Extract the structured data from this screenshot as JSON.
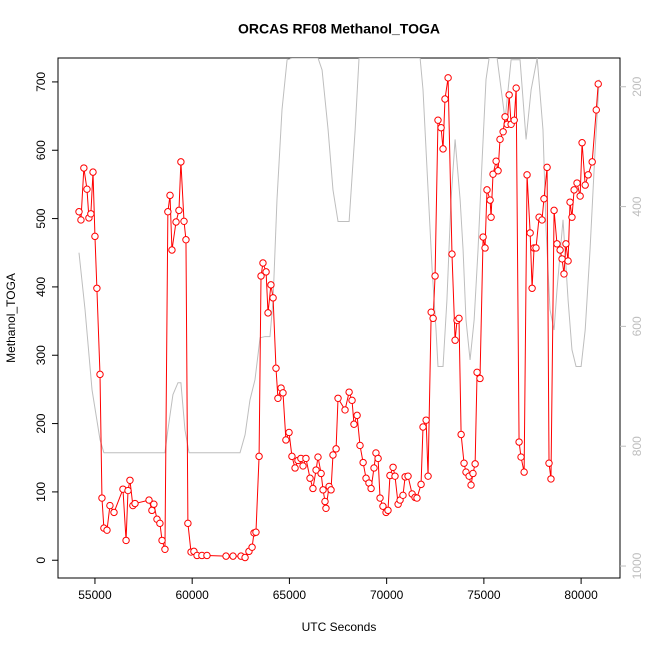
{
  "chart_data": {
    "type": "scatter",
    "title": "ORCAS RF08 Methanol_TOGA",
    "x_label": "UTC Seconds",
    "y_label": "Methanol_TOGA",
    "xlim": [
      53100,
      82000
    ],
    "ylim": [
      -26,
      735
    ],
    "y2lim": [
      1020,
      152
    ],
    "xticks": [
      55000,
      60000,
      65000,
      70000,
      75000,
      80000
    ],
    "yticks": [
      0,
      100,
      200,
      300,
      400,
      500,
      600,
      700
    ],
    "y2ticks": [
      200,
      400,
      600,
      800,
      1000
    ],
    "series": [
      {
        "color": "#ff0000",
        "mode": "line-points",
        "x": [
          54180,
          54280,
          54430,
          54590,
          54690,
          54790,
          54900,
          55000,
          55100,
          55260,
          55360,
          55460,
          55620,
          55770,
          55980,
          56440,
          56600,
          56700,
          56800,
          56950,
          57060,
          57780,
          57930,
          58030,
          58190,
          58340,
          58450,
          58600,
          58750,
          58860,
          58960,
          59170,
          59320,
          59420,
          59580,
          59680,
          59780,
          59940,
          60090,
          60250,
          60500,
          60760,
          61740,
          62100,
          62510,
          62720,
          62920,
          63080,
          63180,
          63280,
          63440,
          63540,
          63640,
          63800,
          63900,
          64050,
          64160,
          64310,
          64410,
          64570,
          64670,
          64820,
          64980,
          65130,
          65290,
          65440,
          65590,
          65700,
          65850,
          66060,
          66210,
          66370,
          66470,
          66630,
          66730,
          66830,
          66880,
          67040,
          67140,
          67240,
          67400,
          67500,
          67860,
          68070,
          68220,
          68320,
          68480,
          68630,
          68790,
          68940,
          69090,
          69200,
          69350,
          69450,
          69560,
          69660,
          69810,
          69970,
          70070,
          70170,
          70330,
          70430,
          70590,
          70690,
          70840,
          70950,
          71100,
          71310,
          71460,
          71560,
          71770,
          71870,
          72030,
          72130,
          72290,
          72390,
          72490,
          72640,
          72800,
          72900,
          73000,
          73160,
          73360,
          73520,
          73620,
          73720,
          73830,
          73980,
          74080,
          74240,
          74340,
          74440,
          74550,
          74650,
          74800,
          74960,
          75060,
          75160,
          75320,
          75370,
          75470,
          75630,
          75730,
          75830,
          75990,
          76090,
          76200,
          76300,
          76400,
          76560,
          76660,
          76810,
          76910,
          77070,
          77220,
          77380,
          77480,
          77580,
          77680,
          77840,
          77990,
          78090,
          78250,
          78350,
          78450,
          78610,
          78760,
          78920,
          79020,
          79120,
          79220,
          79330,
          79430,
          79530,
          79640,
          79790,
          79950,
          80050,
          80210,
          80360,
          80570,
          80780,
          80880
        ],
        "values": [
          510,
          498,
          574,
          543,
          501,
          507,
          568,
          474,
          398,
          272,
          91,
          47,
          44,
          80,
          70,
          104,
          29,
          102,
          117,
          80,
          83,
          88,
          73,
          82,
          60,
          54,
          29,
          16,
          510,
          534,
          454,
          495,
          512,
          583,
          496,
          469,
          54,
          12,
          13,
          7,
          7,
          7,
          6,
          6,
          6,
          4,
          13,
          19,
          40,
          41,
          152,
          416,
          435,
          422,
          362,
          403,
          384,
          281,
          237,
          252,
          245,
          176,
          187,
          152,
          135,
          146,
          149,
          138,
          149,
          120,
          105,
          132,
          151,
          127,
          103,
          86,
          76,
          108,
          103,
          154,
          163,
          237,
          220,
          246,
          234,
          199,
          212,
          168,
          143,
          120,
          113,
          105,
          135,
          157,
          149,
          91,
          79,
          70,
          73,
          124,
          136,
          123,
          82,
          88,
          95,
          122,
          123,
          97,
          92,
          91,
          111,
          195,
          205,
          123,
          363,
          354,
          416,
          644,
          633,
          602,
          675,
          706,
          448,
          322,
          351,
          354,
          184,
          142,
          129,
          123,
          110,
          127,
          141,
          275,
          266,
          473,
          457,
          542,
          527,
          502,
          565,
          584,
          570,
          616,
          627,
          649,
          638,
          681,
          638,
          644,
          691,
          173,
          151,
          129,
          564,
          479,
          398,
          457,
          457,
          502,
          498,
          529,
          575,
          142,
          119,
          512,
          463,
          454,
          441,
          419,
          463,
          438,
          524,
          502,
          542,
          552,
          533,
          611,
          549,
          564,
          583,
          659,
          697
        ]
      },
      {
        "color": "#bebebe",
        "mode": "line",
        "axis": "y2",
        "x": [
          54180,
          54490,
          54850,
          55260,
          55460,
          55770,
          58600,
          58750,
          59010,
          59270,
          59420,
          59630,
          59840,
          62460,
          62720,
          62970,
          63230,
          63490,
          63750,
          64000,
          64160,
          64360,
          64620,
          64880,
          65130,
          65540,
          66470,
          66680,
          66990,
          67240,
          67500,
          68070,
          68380,
          68580,
          69400,
          69920,
          70530,
          71720,
          71870,
          72130,
          72340,
          72540,
          72640,
          72900,
          73100,
          73310,
          73520,
          73780,
          73930,
          74080,
          74290,
          74500,
          74700,
          74910,
          75110,
          75270,
          75680,
          76090,
          76400,
          76860,
          77170,
          77430,
          77740,
          78040,
          78200,
          78400,
          78610,
          78760,
          79070,
          79330,
          79530,
          79740,
          80000,
          80210,
          80460,
          80720,
          80930
        ],
        "values": [
          477,
          572,
          706,
          789,
          811,
          811,
          811,
          773,
          714,
          694,
          694,
          773,
          811,
          811,
          781,
          723,
          689,
          619,
          617,
          617,
          556,
          389,
          238,
          155,
          152,
          152,
          152,
          172,
          272,
          372,
          425,
          425,
          272,
          152,
          152,
          152,
          152,
          152,
          205,
          372,
          506,
          606,
          667,
          667,
          556,
          389,
          288,
          389,
          472,
          589,
          656,
          589,
          472,
          322,
          188,
          152,
          152,
          255,
          155,
          155,
          288,
          205,
          152,
          272,
          439,
          572,
          606,
          539,
          422,
          556,
          639,
          667,
          667,
          606,
          472,
          305,
          188
        ]
      }
    ]
  }
}
